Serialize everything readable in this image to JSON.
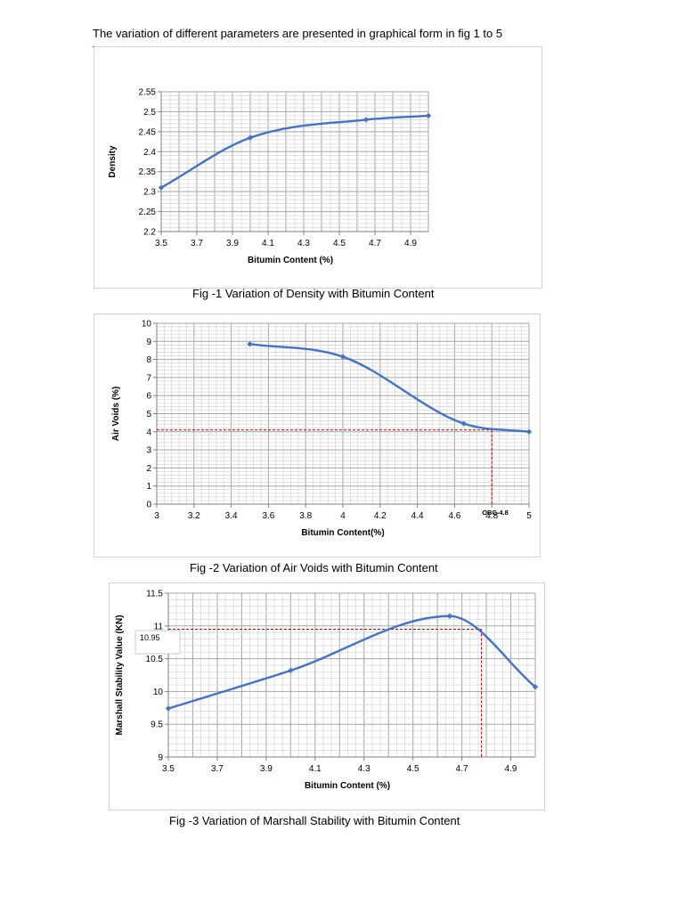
{
  "intro_text": "The variation of different parameters are presented in graphical form in fig 1 to 5",
  "chart_data": [
    {
      "type": "line",
      "caption": "Fig -1 Variation of Density with Bitumin Content",
      "xlabel": "Bitumin Content (%)",
      "ylabel": "Density",
      "xlim": [
        3.5,
        5.0
      ],
      "ylim": [
        2.2,
        2.55
      ],
      "xticks": [
        3.5,
        3.7,
        3.9,
        4.1,
        4.3,
        4.5,
        4.7,
        4.9
      ],
      "xtick_labels": [
        "3.5",
        "3.7",
        "3.9",
        "4.1",
        "4.3",
        "4.5",
        "4.7",
        "4.9"
      ],
      "yticks": [
        2.2,
        2.25,
        2.3,
        2.35,
        2.4,
        2.45,
        2.5,
        2.55
      ],
      "ytick_labels": [
        "2.2",
        "2.25",
        "2.3",
        "2.35",
        "2.4",
        "2.45",
        "2.5",
        "2.55"
      ],
      "grid": true,
      "line_color": "#4472c4",
      "series": [
        {
          "x": [
            3.5,
            4.0,
            4.65,
            5.0
          ],
          "y": [
            2.31,
            2.435,
            2.48,
            2.49
          ]
        }
      ]
    },
    {
      "type": "line",
      "caption": "Fig -2 Variation of Air Voids with Bitumin Content",
      "xlabel": "Bitumin Content(%)",
      "ylabel": "Air Voids (%)",
      "xlim": [
        3.0,
        5.0
      ],
      "ylim": [
        0,
        10
      ],
      "xticks": [
        3.0,
        3.2,
        3.4,
        3.6,
        3.8,
        4.0,
        4.2,
        4.4,
        4.6,
        4.8,
        5.0
      ],
      "xtick_labels": [
        "3",
        "3.2",
        "3.4",
        "3.6",
        "3.8",
        "4",
        "4.2",
        "4.4",
        "4.6",
        "4.8",
        "5"
      ],
      "yticks": [
        0,
        1,
        2,
        3,
        4,
        5,
        6,
        7,
        8,
        9,
        10
      ],
      "ytick_labels": [
        "0",
        "1",
        "2",
        "3",
        "4",
        "5",
        "6",
        "7",
        "8",
        "9",
        "10"
      ],
      "grid": true,
      "line_color": "#4472c4",
      "annotation": "OBC-4.8",
      "reference_line_color": "#c00000",
      "reference": {
        "x": 4.8,
        "y": 4.1
      },
      "series": [
        {
          "x": [
            3.5,
            4.0,
            4.65,
            5.0
          ],
          "y": [
            8.85,
            8.15,
            4.45,
            4.0
          ]
        }
      ]
    },
    {
      "type": "line",
      "caption": "Fig -3 Variation of Marshall Stability with Bitumin Content",
      "xlabel": "Bitumin Content (%)",
      "ylabel": "Marshall Stability Value (KN)",
      "xlim": [
        3.5,
        5.0
      ],
      "ylim": [
        9,
        11.5
      ],
      "xticks": [
        3.5,
        3.7,
        3.9,
        4.1,
        4.3,
        4.5,
        4.7,
        4.9
      ],
      "xtick_labels": [
        "3.5",
        "3.7",
        "3.9",
        "4.1",
        "4.3",
        "4.5",
        "4.7",
        "4.9"
      ],
      "yticks": [
        9,
        9.5,
        10,
        10.5,
        11,
        11.5
      ],
      "ytick_labels": [
        "9",
        "9.5",
        "10",
        "10.5",
        "11",
        "11.5"
      ],
      "grid": true,
      "line_color": "#4472c4",
      "annotation": "10.95",
      "reference_line_color": "#c00000",
      "reference": {
        "x": 4.78,
        "y": 10.95
      },
      "series": [
        {
          "x": [
            3.5,
            4.0,
            4.65,
            5.0
          ],
          "y": [
            9.74,
            10.32,
            11.15,
            10.07
          ]
        }
      ]
    }
  ]
}
